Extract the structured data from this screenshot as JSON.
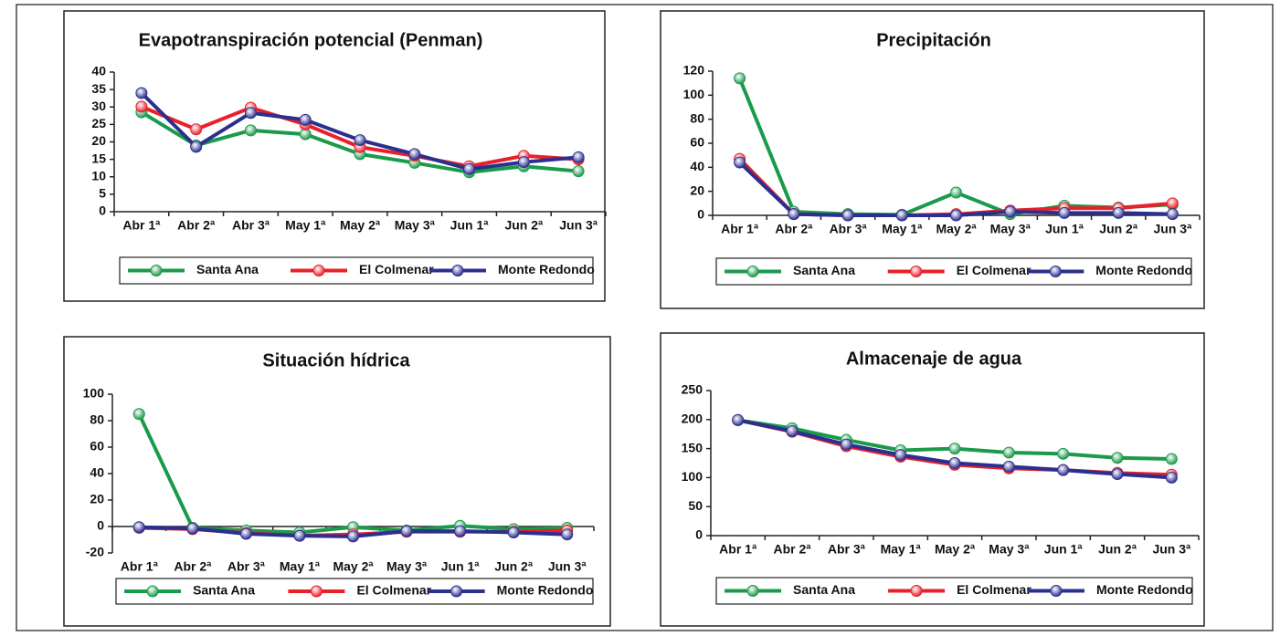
{
  "chart_data": [
    {
      "type": "line",
      "title": "Evapotranspiración potencial (Penman)",
      "categories": [
        "Abr 1ª",
        "Abr 2ª",
        "Abr 3ª",
        "May 1ª",
        "May 2ª",
        "May 3ª",
        "Jun 1ª",
        "Jun 2ª",
        "Jun 3ª"
      ],
      "series": [
        {
          "name": "Santa Ana",
          "color": "#1a9a4a",
          "values": [
            28.5,
            19,
            23.3,
            22.2,
            16.5,
            14,
            11.3,
            13,
            11.6
          ]
        },
        {
          "name": "El Colmenar",
          "color": "#e8202a",
          "values": [
            30.1,
            23.6,
            29.8,
            25,
            18.5,
            16,
            13,
            16,
            15
          ]
        },
        {
          "name": "Monte Redondo",
          "color": "#2b2f8f",
          "values": [
            34,
            18.6,
            28.3,
            26.3,
            20.5,
            16.5,
            12.2,
            14.2,
            15.6
          ]
        }
      ],
      "ylim": [
        0,
        40
      ],
      "yticks": [
        0,
        5,
        10,
        15,
        20,
        25,
        30,
        35,
        40
      ],
      "grid": false
    },
    {
      "type": "line",
      "title": "Precipitación",
      "categories": [
        "Abr 1ª",
        "Abr 2ª",
        "Abr 3ª",
        "May 1ª",
        "May 2ª",
        "May 3ª",
        "Jun 1ª",
        "Jun 2ª",
        "Jun 3ª"
      ],
      "series": [
        {
          "name": "Santa Ana",
          "color": "#1a9a4a",
          "values": [
            114,
            3,
            1,
            0.5,
            19,
            1,
            8,
            6.5,
            9
          ]
        },
        {
          "name": "El Colmenar",
          "color": "#e8202a",
          "values": [
            47,
            1,
            0,
            0,
            1,
            4,
            6,
            6,
            10
          ]
        },
        {
          "name": "Monte Redondo",
          "color": "#2b2f8f",
          "values": [
            44,
            1,
            0,
            0,
            0,
            3,
            2,
            2,
            1
          ]
        }
      ],
      "ylim": [
        0,
        120
      ],
      "yticks": [
        0,
        20,
        40,
        60,
        80,
        100,
        120
      ],
      "grid": false
    },
    {
      "type": "line",
      "title": "Situación hídrica",
      "categories": [
        "Abr 1ª",
        "Abr 2ª",
        "Abr 3ª",
        "May 1ª",
        "May 2ª",
        "May 3ª",
        "Jun 1ª",
        "Jun 2ª",
        "Jun 3ª"
      ],
      "series": [
        {
          "name": "Santa Ana",
          "color": "#1a9a4a",
          "values": [
            85,
            -1,
            -3,
            -4.5,
            -0.5,
            -3,
            0.5,
            -2,
            -1
          ]
        },
        {
          "name": "El Colmenar",
          "color": "#e8202a",
          "values": [
            -1,
            -2,
            -5,
            -7,
            -6,
            -4,
            -4,
            -4,
            -3
          ]
        },
        {
          "name": "Monte Redondo",
          "color": "#2b2f8f",
          "values": [
            -0.5,
            -1.5,
            -5.5,
            -7,
            -7.5,
            -3.5,
            -3.5,
            -4.5,
            -6
          ]
        }
      ],
      "ylim": [
        -20,
        100
      ],
      "yticks": [
        -20,
        0,
        20,
        40,
        60,
        80,
        100
      ],
      "grid": false
    },
    {
      "type": "line",
      "title": "Almacenaje de agua",
      "categories": [
        "Abr 1ª",
        "Abr 2ª",
        "Abr 3ª",
        "May 1ª",
        "May 2ª",
        "May 3ª",
        "Jun 1ª",
        "Jun 2ª",
        "Jun 3ª"
      ],
      "series": [
        {
          "name": "Santa Ana",
          "color": "#1a9a4a",
          "values": [
            199,
            185,
            165,
            147,
            150,
            143,
            141,
            134,
            132
          ]
        },
        {
          "name": "El Colmenar",
          "color": "#e8202a",
          "values": [
            199,
            179,
            154,
            136,
            122,
            116,
            113,
            108,
            105
          ]
        },
        {
          "name": "Monte Redondo",
          "color": "#2b2f8f",
          "values": [
            199,
            180,
            157,
            139,
            125,
            119,
            113,
            106,
            100
          ]
        }
      ],
      "ylim": [
        0,
        250
      ],
      "yticks": [
        0,
        50,
        100,
        150,
        200,
        250
      ],
      "grid": false
    }
  ]
}
